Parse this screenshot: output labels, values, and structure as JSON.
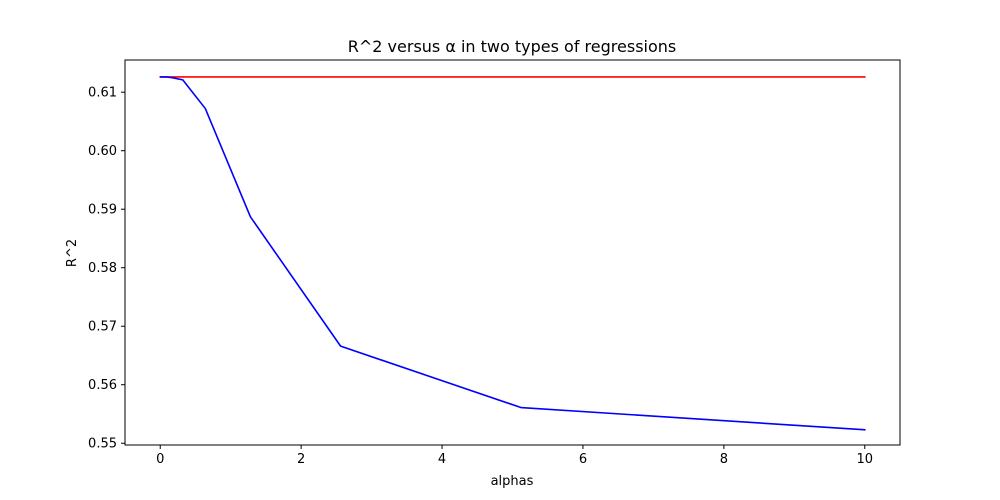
{
  "chart_data": {
    "type": "line",
    "title": "R^2  versus α in two types of regressions",
    "xlabel": "alphas",
    "ylabel": "R^2",
    "xlim": [
      -0.5,
      10.5
    ],
    "ylim": [
      0.5497,
      0.6155
    ],
    "xticks": [
      0,
      2,
      4,
      6,
      8,
      10
    ],
    "xtick_labels": [
      "0",
      "2",
      "4",
      "6",
      "8",
      "10"
    ],
    "yticks": [
      0.55,
      0.56,
      0.57,
      0.58,
      0.59,
      0.6,
      0.61
    ],
    "ytick_labels": [
      "0.55",
      "0.56",
      "0.57",
      "0.58",
      "0.59",
      "0.60",
      "0.61"
    ],
    "grid": false,
    "legend": "none",
    "series": [
      {
        "color": "#ff0000",
        "x": [
          0,
          10
        ],
        "y": [
          0.6126,
          0.6126
        ]
      },
      {
        "color": "#0000ff",
        "x": [
          0.01,
          0.02,
          0.04,
          0.08,
          0.16,
          0.32,
          0.64,
          1.28,
          2.56,
          5.12,
          10
        ],
        "y": [
          0.6126,
          0.6126,
          0.6126,
          0.6126,
          0.6125,
          0.6121,
          0.6072,
          0.5887,
          0.5666,
          0.5561,
          0.5523
        ]
      }
    ]
  }
}
